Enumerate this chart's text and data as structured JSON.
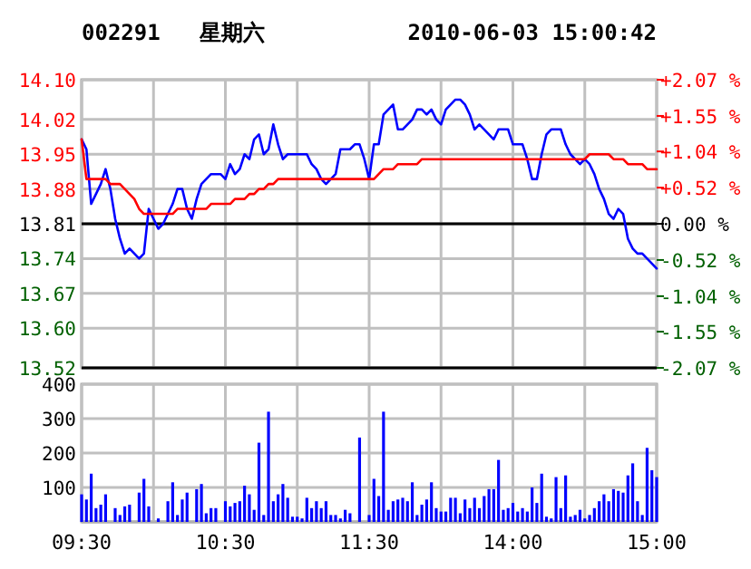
{
  "chart_data": [
    {
      "type": "line",
      "title": "002291   星期六",
      "subtitle": "2010-06-03 15:00:42",
      "categories": [
        null,
        null,
        null,
        null,
        null,
        null,
        null,
        null,
        null,
        null,
        null,
        null,
        null,
        null,
        null,
        null,
        null,
        null,
        null,
        null,
        null,
        null,
        null,
        null,
        null,
        null,
        null,
        null,
        null,
        null,
        null,
        null,
        null,
        null,
        null,
        null,
        null,
        null,
        null,
        null,
        null,
        null,
        null,
        null,
        null,
        null,
        null,
        null,
        null,
        null,
        null,
        null,
        null,
        null,
        null,
        null,
        null,
        null,
        null,
        null,
        null,
        null,
        null,
        null,
        null,
        null,
        null,
        null,
        null,
        null,
        null,
        null,
        null,
        null,
        null,
        null,
        null,
        null,
        null,
        null,
        null,
        null,
        null,
        null,
        null,
        null,
        null,
        null,
        null,
        null,
        null,
        null,
        null,
        null,
        null,
        null,
        null,
        null,
        null,
        null,
        null,
        null,
        null,
        null,
        null,
        null,
        null,
        null,
        null,
        null,
        null,
        null,
        null,
        null,
        null,
        null,
        null,
        null,
        null,
        null,
        null
      ],
      "ylim": [
        13.52,
        14.1
      ],
      "yticks": [
        {
          "value": 13.52,
          "label": "13.52"
        },
        {
          "value": 13.6,
          "label": "13.60"
        },
        13.67,
        13.74,
        13.81,
        13.88,
        13.95,
        14.02,
        {
          "value": 14.1,
          "label": "14.10"
        }
      ],
      "y2lim": [
        -2.07,
        2.07
      ],
      "y2ticks": [
        {
          "value": 2.07,
          "label": "+2.07 %"
        },
        {
          "value": 1.55,
          "label": "+1.55 %"
        },
        {
          "value": 1.04,
          "label": "+1.04 %"
        },
        {
          "value": 0.52,
          "label": "+0.52 %"
        },
        {
          "value": 0,
          "label": "0.00 %"
        },
        {
          "value": -0.52,
          "label": "-0.52 %"
        },
        {
          "value": -1.04,
          "label": "-1.04 %"
        },
        {
          "value": -1.55,
          "label": "-1.55 %"
        },
        {
          "value": -2.07,
          "label": "-2.07 %"
        }
      ],
      "grid": true,
      "tick_labels": "y",
      "marker": "none",
      "line_style": "solid",
      "ref_lines": [
        {
          "axis": "y",
          "value": 13.81,
          "color": "#000000"
        }
      ],
      "series": [
        {
          "color": "#0000ff",
          "values": [
            13.98,
            13.96,
            13.85,
            13.87,
            13.89,
            13.92,
            13.88,
            13.82,
            13.78,
            13.75,
            13.76,
            13.75,
            13.74,
            13.75,
            13.84,
            13.82,
            13.8,
            13.81,
            13.83,
            13.85,
            13.88,
            13.88,
            13.84,
            13.82,
            13.86,
            13.89,
            13.9,
            13.91,
            13.91,
            13.91,
            13.9,
            13.93,
            13.91,
            13.92,
            13.95,
            13.94,
            13.98,
            13.99,
            13.95,
            13.96,
            14.01,
            13.97,
            13.94,
            13.95,
            13.95,
            13.95,
            13.95,
            13.95,
            13.93,
            13.92,
            13.9,
            13.89,
            13.9,
            13.91,
            13.96,
            13.96,
            13.96,
            13.97,
            13.97,
            13.94,
            13.9,
            13.97,
            13.97,
            14.03,
            14.04,
            14.05,
            14.0,
            14.0,
            14.01,
            14.02,
            14.04,
            14.04,
            14.03,
            14.04,
            14.02,
            14.01,
            14.04,
            14.05,
            14.06,
            14.06,
            14.05,
            14.03,
            14.0,
            14.01,
            14.0,
            13.99,
            13.98,
            14.0,
            14.0,
            14.0,
            13.97,
            13.97,
            13.97,
            13.94,
            13.9,
            13.9,
            13.95,
            13.99,
            14.0,
            14.0,
            14.0,
            13.97,
            13.95,
            13.94,
            13.93,
            13.94,
            13.93,
            13.91,
            13.88,
            13.86,
            13.83,
            13.82,
            13.84,
            13.83,
            13.78,
            13.76,
            13.75,
            13.75,
            13.74,
            13.73,
            13.72
          ]
        },
        {
          "color": "#ff0000",
          "values": [
            13.98,
            13.9,
            13.9,
            13.9,
            13.9,
            13.9,
            13.89,
            13.89,
            13.89,
            13.88,
            13.87,
            13.86,
            13.84,
            13.83,
            13.83,
            13.83,
            13.83,
            13.83,
            13.83,
            13.83,
            13.84,
            13.84,
            13.84,
            13.84,
            13.84,
            13.84,
            13.84,
            13.85,
            13.85,
            13.85,
            13.85,
            13.85,
            13.86,
            13.86,
            13.86,
            13.87,
            13.87,
            13.88,
            13.88,
            13.89,
            13.89,
            13.9,
            13.9,
            13.9,
            13.9,
            13.9,
            13.9,
            13.9,
            13.9,
            13.9,
            13.9,
            13.9,
            13.9,
            13.9,
            13.9,
            13.9,
            13.9,
            13.9,
            13.9,
            13.9,
            13.9,
            13.9,
            13.91,
            13.92,
            13.92,
            13.92,
            13.93,
            13.93,
            13.93,
            13.93,
            13.93,
            13.94,
            13.94,
            13.94,
            13.94,
            13.94,
            13.94,
            13.94,
            13.94,
            13.94,
            13.94,
            13.94,
            13.94,
            13.94,
            13.94,
            13.94,
            13.94,
            13.94,
            13.94,
            13.94,
            13.94,
            13.94,
            13.94,
            13.94,
            13.94,
            13.94,
            13.94,
            13.94,
            13.94,
            13.94,
            13.94,
            13.94,
            13.94,
            13.94,
            13.94,
            13.94,
            13.95,
            13.95,
            13.95,
            13.95,
            13.95,
            13.94,
            13.94,
            13.94,
            13.93,
            13.93,
            13.93,
            13.93,
            13.92,
            13.92,
            13.92
          ]
        }
      ]
    },
    {
      "type": "bar",
      "categories": [
        "09:30",
        null,
        null,
        null,
        null,
        null,
        null,
        null,
        null,
        null,
        null,
        null,
        null,
        null,
        null,
        null,
        null,
        null,
        null,
        null,
        null,
        null,
        null,
        null,
        null,
        null,
        null,
        null,
        null,
        null,
        "10:30",
        null,
        null,
        null,
        null,
        null,
        null,
        null,
        null,
        null,
        null,
        null,
        null,
        null,
        null,
        null,
        null,
        null,
        null,
        null,
        null,
        null,
        null,
        null,
        null,
        null,
        null,
        null,
        null,
        null,
        "11:30",
        null,
        null,
        null,
        null,
        null,
        null,
        null,
        null,
        null,
        null,
        null,
        null,
        null,
        null,
        null,
        null,
        null,
        null,
        null,
        null,
        null,
        null,
        null,
        null,
        null,
        null,
        null,
        null,
        null,
        "14:00",
        null,
        null,
        null,
        null,
        null,
        null,
        null,
        null,
        null,
        null,
        null,
        null,
        null,
        null,
        null,
        null,
        null,
        null,
        null,
        null,
        null,
        null,
        null,
        null,
        null,
        null,
        null,
        null,
        null,
        "15:00"
      ],
      "ylim": [
        0,
        400
      ],
      "yticks": [
        {
          "value": 0,
          "label": null
        },
        100,
        200,
        300,
        400
      ],
      "grid": true,
      "series": [
        {
          "color": "#0000ff",
          "values": [
            80,
            65,
            140,
            40,
            50,
            80,
            null,
            40,
            20,
            45,
            50,
            null,
            85,
            125,
            45,
            null,
            10,
            null,
            60,
            115,
            20,
            65,
            85,
            null,
            95,
            110,
            25,
            40,
            40,
            null,
            60,
            45,
            55,
            60,
            105,
            80,
            35,
            230,
            20,
            320,
            60,
            80,
            110,
            70,
            15,
            15,
            10,
            70,
            40,
            60,
            40,
            60,
            20,
            20,
            10,
            35,
            25,
            null,
            245,
            null,
            20,
            125,
            75,
            320,
            35,
            60,
            65,
            70,
            60,
            115,
            20,
            50,
            65,
            115,
            40,
            30,
            30,
            70,
            70,
            25,
            65,
            40,
            70,
            40,
            75,
            95,
            95,
            180,
            35,
            40,
            55,
            30,
            40,
            30,
            100,
            55,
            140,
            15,
            10,
            130,
            40,
            135,
            15,
            20,
            35,
            10,
            20,
            40,
            60,
            80,
            60,
            95,
            90,
            85,
            135,
            170,
            60,
            20,
            215,
            150,
            130
          ]
        }
      ]
    }
  ]
}
